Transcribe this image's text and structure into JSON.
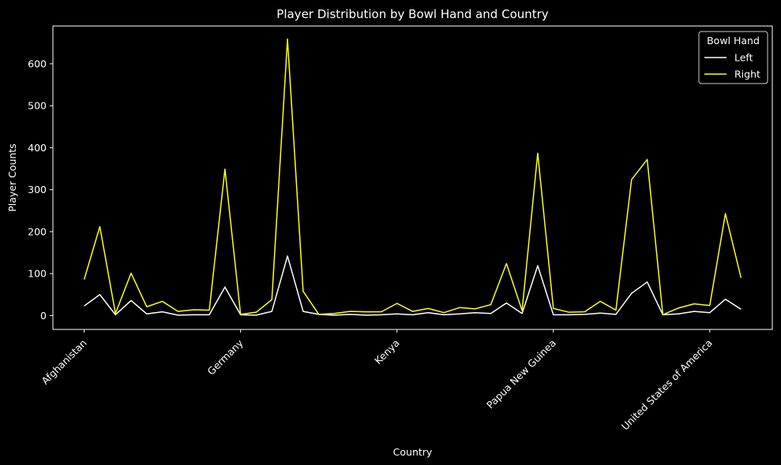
{
  "chart_data": {
    "type": "line",
    "title": "Player Distribution by Bowl Hand and Country",
    "xlabel": "Country",
    "ylabel": "Player Counts",
    "x_tick_labels": [
      "Afghanistan",
      "Germany",
      "Kenya",
      "Papua New Guinea",
      "United States of America"
    ],
    "x_tick_positions": [
      0,
      10,
      20,
      30,
      40
    ],
    "yticks": [
      0,
      100,
      200,
      300,
      400,
      500,
      600
    ],
    "ylim": [
      -33,
      690
    ],
    "xlim": [
      -2,
      44
    ],
    "grid": false,
    "legend": {
      "title": "Bowl Hand",
      "position": "top-right"
    },
    "series": [
      {
        "name": "Left",
        "color": "#ffffff",
        "values": [
          23,
          50,
          2,
          36,
          4,
          9,
          1,
          2,
          2,
          68,
          2,
          1,
          10,
          142,
          10,
          3,
          1,
          3,
          1,
          2,
          4,
          2,
          7,
          2,
          4,
          7,
          5,
          30,
          5,
          119,
          2,
          2,
          3,
          6,
          3,
          53,
          80,
          2,
          4,
          10,
          7,
          39,
          15
        ]
      },
      {
        "name": "Right",
        "color": "#ffff1a",
        "values": [
          86,
          212,
          5,
          101,
          21,
          34,
          10,
          14,
          13,
          349,
          3,
          8,
          38,
          659,
          58,
          3,
          5,
          10,
          9,
          9,
          29,
          10,
          17,
          7,
          19,
          16,
          26,
          124,
          12,
          387,
          17,
          8,
          9,
          34,
          13,
          324,
          372,
          2,
          18,
          28,
          24,
          243,
          90
        ]
      }
    ]
  }
}
